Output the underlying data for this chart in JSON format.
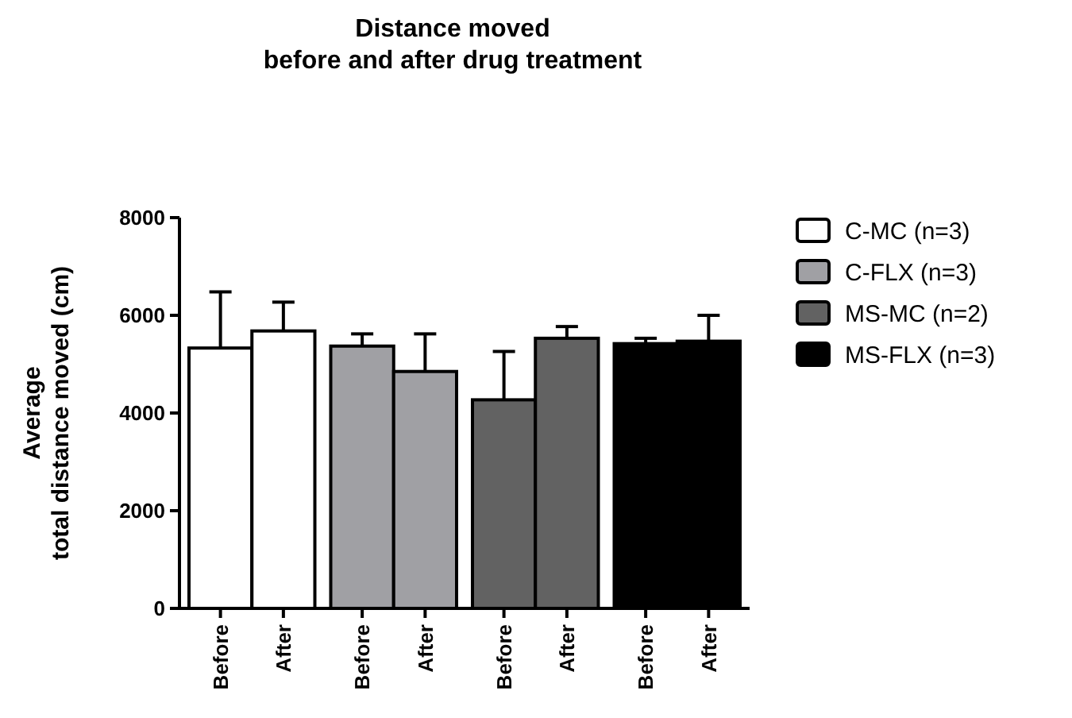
{
  "chart_data": {
    "type": "bar",
    "title": "Distance moved\nbefore and after drug treatment",
    "ylabel": "Average\ntotal distance moved  (cm)",
    "categories": [
      "Before",
      "After",
      "Before",
      "After",
      "Before",
      "After",
      "Before",
      "After"
    ],
    "series": [
      {
        "name": "C-MC (n=3)",
        "color": "#ffffff",
        "values": [
          5330,
          5680,
          null,
          null,
          null,
          null,
          null,
          null
        ],
        "errors": [
          [
            5330,
            6480
          ],
          [
            5680,
            6270
          ],
          null,
          null,
          null,
          null,
          null,
          null
        ]
      },
      {
        "name": "C-FLX (n=3)",
        "color": "#a0a0a4",
        "values": [
          null,
          null,
          5370,
          4850,
          null,
          null,
          null,
          null
        ],
        "errors": [
          null,
          null,
          [
            5370,
            5620
          ],
          [
            4850,
            5620
          ],
          null,
          null,
          null,
          null
        ]
      },
      {
        "name": "MS-MC (n=2)",
        "color": "#626262",
        "values": [
          null,
          null,
          null,
          null,
          4270,
          5530,
          null,
          null
        ],
        "errors": [
          null,
          null,
          null,
          null,
          [
            4270,
            5260
          ],
          [
            5530,
            5770
          ],
          null,
          null
        ]
      },
      {
        "name": "MS-FLX (n=3)",
        "color": "#000000",
        "values": [
          null,
          null,
          null,
          null,
          null,
          null,
          5420,
          5470
        ],
        "errors": [
          null,
          null,
          null,
          null,
          null,
          null,
          [
            5420,
            5530
          ],
          [
            5470,
            6000
          ]
        ]
      }
    ],
    "ylim": [
      0,
      8000
    ],
    "yticks": [
      0,
      2000,
      4000,
      6000,
      8000
    ],
    "grid": false,
    "legend": "right"
  }
}
